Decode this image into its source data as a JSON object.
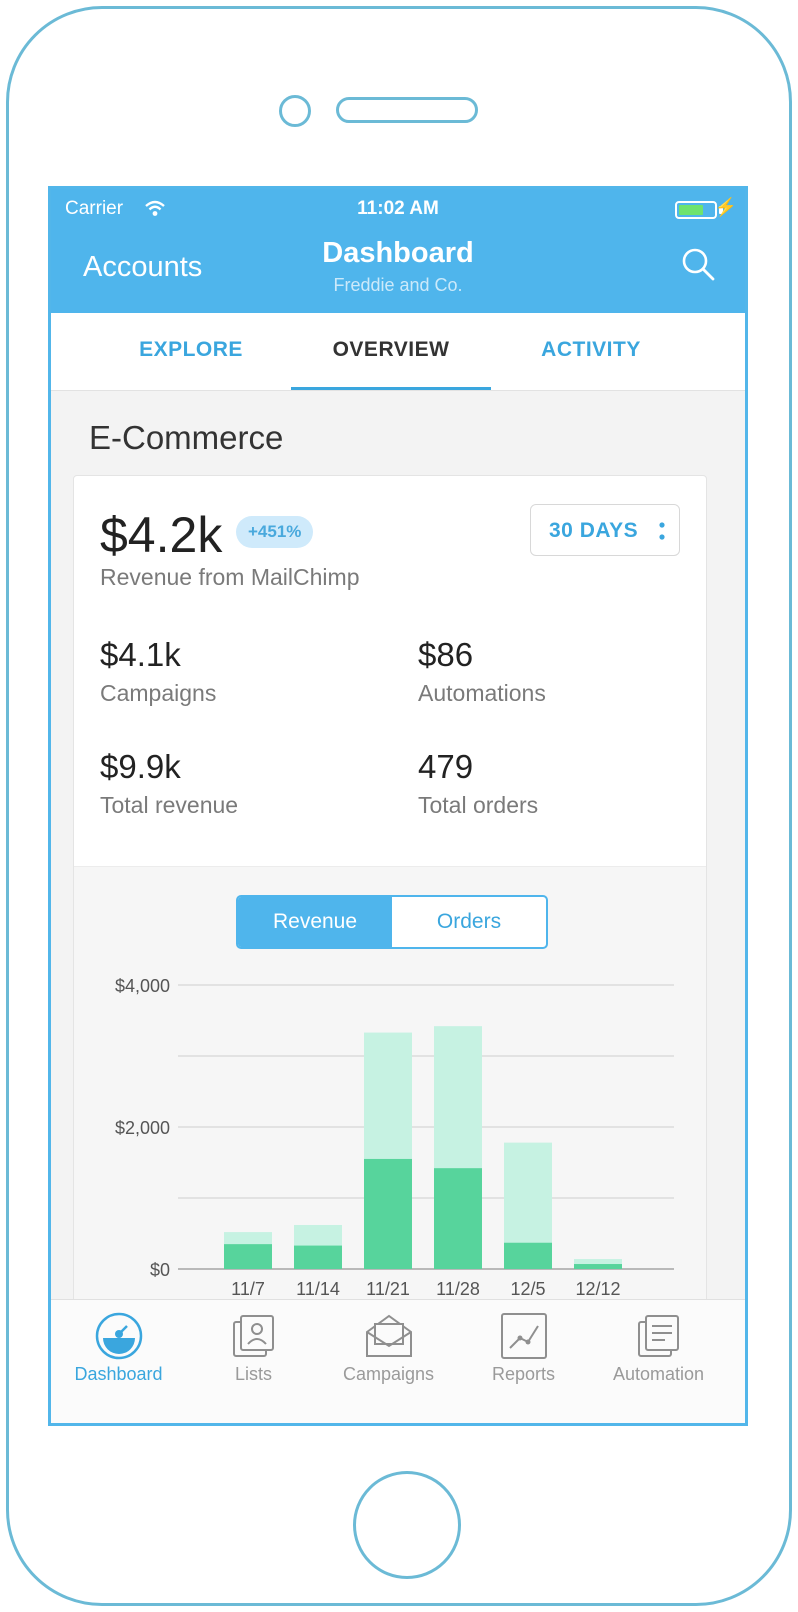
{
  "status_bar": {
    "carrier": "Carrier",
    "time": "11:02 AM"
  },
  "nav": {
    "back_label": "Accounts",
    "title": "Dashboard",
    "subtitle": "Freddie and Co."
  },
  "tabs": [
    {
      "label": "EXPLORE",
      "active": false
    },
    {
      "label": "OVERVIEW",
      "active": true
    },
    {
      "label": "ACTIVITY",
      "active": false
    }
  ],
  "section_title": "E-Commerce",
  "summary": {
    "revenue": "$4.2k",
    "change_badge": "+451%",
    "revenue_label": "Revenue from MailChimp",
    "range_label": "30 DAYS"
  },
  "stats": [
    {
      "value": "$4.1k",
      "label": "Campaigns"
    },
    {
      "value": "$86",
      "label": "Automations"
    },
    {
      "value": "$9.9k",
      "label": "Total revenue"
    },
    {
      "value": "479",
      "label": "Total orders"
    }
  ],
  "toggle": {
    "active": "Revenue",
    "inactive": "Orders"
  },
  "colors": {
    "accent": "#4fb5ec",
    "bar_dark": "#57d49c",
    "bar_light": "#c6f2e2"
  },
  "chart_data": {
    "type": "bar",
    "categories": [
      "11/7",
      "11/14",
      "11/21",
      "11/28",
      "12/5",
      "12/12"
    ],
    "series": [
      {
        "values": [
          350,
          330,
          1550,
          1420,
          370,
          70
        ]
      },
      {
        "values": [
          520,
          620,
          3330,
          3420,
          1780,
          140
        ]
      }
    ],
    "ylim": [
      0,
      4000
    ],
    "yticks": [
      "$0",
      "$2,000",
      "$4,000"
    ],
    "grid": true
  },
  "tabbar": [
    {
      "label": "Dashboard",
      "icon": "dashboard-icon",
      "active": true
    },
    {
      "label": "Lists",
      "icon": "lists-icon",
      "active": false
    },
    {
      "label": "Campaigns",
      "icon": "campaigns-icon",
      "active": false
    },
    {
      "label": "Reports",
      "icon": "reports-icon",
      "active": false
    },
    {
      "label": "Automation",
      "icon": "automation-icon",
      "active": false
    }
  ]
}
